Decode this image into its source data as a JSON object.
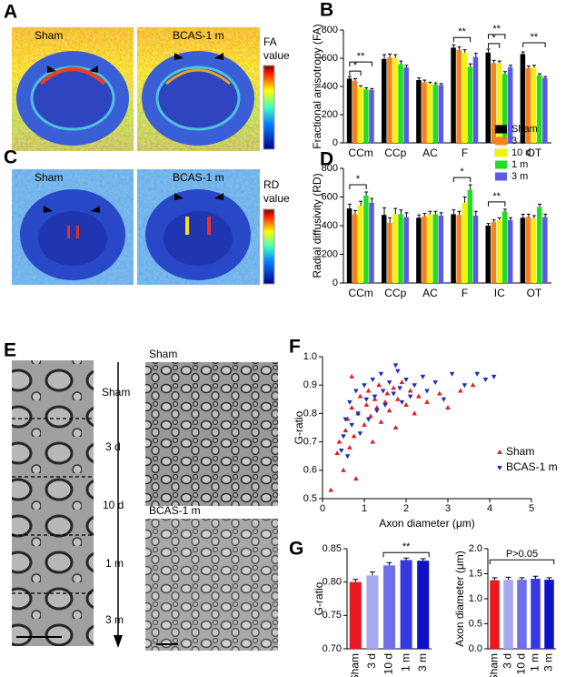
{
  "panels": {
    "A": {
      "letter": "A",
      "labels": [
        "Sham",
        "BCAS-1 m"
      ],
      "colorbar_label": [
        "FA",
        "value"
      ]
    },
    "C": {
      "letter": "C",
      "labels": [
        "Sham",
        "BCAS-1 m"
      ],
      "colorbar_label": [
        "RD",
        "value"
      ]
    },
    "E": {
      "letter": "E",
      "timeline": [
        "Sham",
        "3 d",
        "10 d",
        "1 m",
        "3 m"
      ],
      "image_labels": [
        "Sham",
        "BCAS-1 m"
      ]
    }
  },
  "chart_data": [
    {
      "panel_label": "B",
      "type": "bar",
      "ylabel": "Fractional anisotropy (FA)",
      "categories": [
        "CCm",
        "CCp",
        "AC",
        "F",
        "IC",
        "OT"
      ],
      "ylim": [
        0,
        800
      ],
      "yticks": [
        0,
        200,
        400,
        600,
        800
      ],
      "series": [
        {
          "color": "#000000",
          "values": [
            455,
            595,
            445,
            675,
            640,
            630
          ],
          "errors": [
            15,
            30,
            15,
            20,
            25,
            15
          ]
        },
        {
          "color": "#f5821f",
          "values": [
            440,
            605,
            430,
            660,
            565,
            530
          ],
          "errors": [
            15,
            25,
            15,
            20,
            20,
            15
          ]
        },
        {
          "color": "#f2f20a",
          "values": [
            395,
            605,
            420,
            640,
            565,
            535
          ],
          "errors": [
            10,
            20,
            10,
            20,
            15,
            15
          ]
        },
        {
          "color": "#22dd22",
          "values": [
            380,
            560,
            415,
            540,
            490,
            480
          ],
          "errors": [
            10,
            20,
            10,
            20,
            15,
            10
          ]
        },
        {
          "color": "#5a5ae6",
          "values": [
            375,
            535,
            410,
            610,
            535,
            460
          ],
          "errors": [
            10,
            15,
            10,
            25,
            15,
            10
          ]
        }
      ],
      "annotations": [
        "**",
        "*",
        "**",
        "**",
        "*",
        "**"
      ]
    },
    {
      "panel_label": "D",
      "type": "bar",
      "ylabel": "Radial diffusivity (RD)",
      "categories": [
        "CCm",
        "CCp",
        "AC",
        "F",
        "IC",
        "OT"
      ],
      "ylim": [
        0,
        800
      ],
      "yticks": [
        0,
        200,
        400,
        600,
        800
      ],
      "legend": "upper right",
      "series": [
        {
          "name": "Sham",
          "color": "#000000",
          "values": [
            520,
            475,
            455,
            480,
            400,
            455
          ],
          "errors": [
            30,
            50,
            20,
            30,
            15,
            25
          ]
        },
        {
          "name": "3 d",
          "color": "#f5821f",
          "values": [
            480,
            420,
            465,
            475,
            425,
            460
          ],
          "errors": [
            25,
            35,
            20,
            25,
            15,
            20
          ]
        },
        {
          "name": "10 d",
          "color": "#f2f20a",
          "values": [
            540,
            480,
            480,
            560,
            440,
            450
          ],
          "errors": [
            30,
            40,
            20,
            40,
            15,
            20
          ]
        },
        {
          "name": "1 m",
          "color": "#22dd22",
          "values": [
            610,
            480,
            480,
            650,
            500,
            530
          ],
          "errors": [
            25,
            30,
            20,
            35,
            15,
            20
          ]
        },
        {
          "name": "3 m",
          "color": "#5a5ae6",
          "values": [
            560,
            460,
            470,
            470,
            440,
            460
          ],
          "errors": [
            30,
            30,
            20,
            30,
            15,
            20
          ]
        }
      ],
      "annotations": [
        "*",
        "*",
        "**"
      ]
    },
    {
      "panel_label": "F",
      "type": "scatter",
      "xlabel": "Axon diameter (μm)",
      "ylabel": "G-ratio",
      "xlim": [
        0,
        5
      ],
      "xticks": [
        0,
        1,
        2,
        3,
        4,
        5
      ],
      "ylim": [
        0.5,
        1
      ],
      "yticks": [
        0.5,
        0.6,
        0.7,
        0.8,
        0.9,
        {
          "value": 1,
          "label": "1.0"
        }
      ],
      "legend": "lower right",
      "series": [
        {
          "name": "Sham",
          "color": "#e8191e",
          "marker": "triangle-up",
          "x": [
            0.2,
            0.35,
            0.4,
            0.5,
            0.55,
            0.6,
            0.65,
            0.7,
            0.75,
            0.8,
            0.85,
            0.9,
            1.0,
            1.05,
            1.1,
            1.15,
            1.2,
            1.25,
            1.3,
            1.35,
            1.4,
            1.5,
            1.55,
            1.6,
            1.7,
            1.75,
            1.8,
            1.9,
            2.0,
            2.1,
            2.2,
            2.3,
            2.5,
            2.8,
            3.0,
            3.3,
            3.6,
            0.7
          ],
          "values": [
            0.53,
            0.66,
            0.7,
            0.6,
            0.74,
            0.78,
            0.68,
            0.82,
            0.72,
            0.57,
            0.8,
            0.86,
            0.76,
            0.83,
            0.88,
            0.79,
            0.7,
            0.85,
            0.82,
            0.9,
            0.77,
            0.84,
            0.87,
            0.81,
            0.89,
            0.75,
            0.85,
            0.91,
            0.83,
            0.88,
            0.8,
            0.86,
            0.84,
            0.87,
            0.82,
            0.88,
            0.9,
            0.93
          ]
        },
        {
          "name": "BCAS-1 m",
          "color": "#1a2fb8",
          "marker": "triangle-down",
          "x": [
            0.45,
            0.5,
            0.55,
            0.6,
            0.65,
            0.7,
            0.8,
            0.85,
            0.9,
            1.0,
            1.05,
            1.1,
            1.2,
            1.25,
            1.3,
            1.4,
            1.45,
            1.5,
            1.6,
            1.7,
            1.8,
            1.85,
            1.9,
            2.0,
            2.1,
            2.2,
            2.4,
            2.5,
            2.7,
            2.9,
            3.1,
            3.4,
            3.7,
            3.9,
            4.1,
            1.75
          ],
          "values": [
            0.67,
            0.72,
            0.78,
            0.65,
            0.84,
            0.76,
            0.88,
            0.8,
            0.73,
            0.9,
            0.85,
            0.78,
            0.92,
            0.86,
            0.81,
            0.94,
            0.88,
            0.83,
            0.91,
            0.87,
            0.95,
            0.89,
            0.84,
            0.92,
            0.86,
            0.9,
            0.93,
            0.88,
            0.91,
            0.85,
            0.94,
            0.9,
            0.94,
            0.92,
            0.93,
            0.97
          ]
        }
      ]
    },
    {
      "panel_label": "G",
      "type": "bar",
      "ylabel": "G-ratio",
      "categories": [
        "Sham",
        "3 d",
        "10 d",
        "1 m",
        "3 m"
      ],
      "values": [
        0.8,
        0.81,
        0.825,
        0.833,
        0.832
      ],
      "errors": [
        0.004,
        0.005,
        0.004,
        0.003,
        0.003
      ],
      "colors": [
        "#e8191e",
        "#a8a8f0",
        "#6f6fe8",
        "#3838e0",
        "#1010c8"
      ],
      "ylim": [
        0.7,
        0.85
      ],
      "yticks": [
        {
          "value": 0.7,
          "label": "0.70"
        },
        {
          "value": 0.75,
          "label": "0.75"
        },
        {
          "value": 0.8,
          "label": "0.80"
        },
        {
          "value": 0.85,
          "label": "0.85"
        }
      ],
      "annotations": [
        "**"
      ]
    },
    {
      "type": "bar",
      "ylabel": "Axon diameter (μm)",
      "categories": [
        "Sham",
        "3 d",
        "10 d",
        "1 m",
        "3 m"
      ],
      "values": [
        1.37,
        1.38,
        1.38,
        1.4,
        1.38
      ],
      "errors": [
        0.05,
        0.05,
        0.04,
        0.05,
        0.04
      ],
      "colors": [
        "#e8191e",
        "#a8a8f0",
        "#6f6fe8",
        "#3838e0",
        "#1010c8"
      ],
      "ylim": [
        0,
        2
      ],
      "yticks": [
        {
          "value": 0,
          "label": "0.0"
        },
        0.5,
        {
          "value": 1,
          "label": "1.0"
        },
        1.5,
        {
          "value": 2,
          "label": "2.0"
        }
      ],
      "annotations": [
        "P>0.05"
      ]
    }
  ]
}
